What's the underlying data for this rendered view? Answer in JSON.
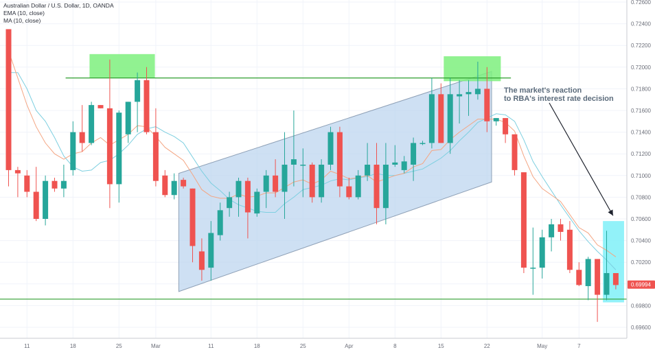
{
  "legend": {
    "title": "Australian Dollar / U.S. Dollar, 1D, OANDA",
    "ema": "EMA (10, close)",
    "ma": "MA (10, close)"
  },
  "annotation": {
    "line1": "The market's reaction",
    "line2": "to RBA's interest rate decision"
  },
  "colors": {
    "up": "#26a69a",
    "down": "#ef5350",
    "ema": "#f4a582",
    "ma": "#7dcfe0",
    "channel_fill": "#b9d3ee",
    "resistance_zone": "#7ef07e",
    "reaction_zone": "#7ff0f8",
    "level_line": "#2e9e2e",
    "price_tag": "#ef5350"
  },
  "chart_data": {
    "type": "candlestick",
    "title": "Australian Dollar / U.S. Dollar, 1D, OANDA",
    "ylim": [
      0.6948,
      0.7262
    ],
    "y_ticks": [
      "0.72600",
      "0.72400",
      "0.72200",
      "0.72000",
      "0.71800",
      "0.71600",
      "0.71400",
      "0.71200",
      "0.71000",
      "0.70800",
      "0.70600",
      "0.70400",
      "0.70200",
      "0.70000",
      "0.69800",
      "0.69600"
    ],
    "y_tick_values": [
      0.726,
      0.724,
      0.722,
      0.72,
      0.718,
      0.716,
      0.714,
      0.712,
      0.71,
      0.708,
      0.706,
      0.704,
      0.702,
      0.7,
      0.698,
      0.696
    ],
    "x_ticks": [
      {
        "label": "11",
        "index": 2
      },
      {
        "label": "18",
        "index": 7
      },
      {
        "label": "25",
        "index": 12
      },
      {
        "label": "Mar",
        "index": 16
      },
      {
        "label": "11",
        "index": 22
      },
      {
        "label": "18",
        "index": 27
      },
      {
        "label": "25",
        "index": 32
      },
      {
        "label": "Apr",
        "index": 37
      },
      {
        "label": "8",
        "index": 42
      },
      {
        "label": "15",
        "index": 47
      },
      {
        "label": "22",
        "index": 52
      },
      {
        "label": "May",
        "index": 58
      },
      {
        "label": "7",
        "index": 62
      }
    ],
    "last_price": "0.69994",
    "last_value": 0.69994,
    "candles": [
      {
        "o": 0.7235,
        "h": 0.7235,
        "l": 0.709,
        "c": 0.7105
      },
      {
        "o": 0.7105,
        "h": 0.7108,
        "l": 0.708,
        "c": 0.7102
      },
      {
        "o": 0.71,
        "h": 0.7105,
        "l": 0.708,
        "c": 0.7085
      },
      {
        "o": 0.7085,
        "h": 0.7108,
        "l": 0.7058,
        "c": 0.706
      },
      {
        "o": 0.706,
        "h": 0.71,
        "l": 0.7054,
        "c": 0.7095
      },
      {
        "o": 0.7095,
        "h": 0.7098,
        "l": 0.7085,
        "c": 0.7088
      },
      {
        "o": 0.7088,
        "h": 0.711,
        "l": 0.708,
        "c": 0.7095
      },
      {
        "o": 0.7105,
        "h": 0.715,
        "l": 0.71,
        "c": 0.714
      },
      {
        "o": 0.714,
        "h": 0.7165,
        "l": 0.7122,
        "c": 0.713
      },
      {
        "o": 0.713,
        "h": 0.7168,
        "l": 0.7128,
        "c": 0.7165
      },
      {
        "o": 0.7165,
        "h": 0.7165,
        "l": 0.7162,
        "c": 0.7162
      },
      {
        "o": 0.7162,
        "h": 0.7207,
        "l": 0.707,
        "c": 0.7092
      },
      {
        "o": 0.7092,
        "h": 0.716,
        "l": 0.7075,
        "c": 0.7158
      },
      {
        "o": 0.7138,
        "h": 0.7168,
        "l": 0.713,
        "c": 0.7168
      },
      {
        "o": 0.7168,
        "h": 0.7195,
        "l": 0.714,
        "c": 0.7188
      },
      {
        "o": 0.7188,
        "h": 0.72,
        "l": 0.7138,
        "c": 0.714
      },
      {
        "o": 0.714,
        "h": 0.7162,
        "l": 0.709,
        "c": 0.7095
      },
      {
        "o": 0.71,
        "h": 0.7105,
        "l": 0.708,
        "c": 0.7082
      },
      {
        "o": 0.7082,
        "h": 0.7102,
        "l": 0.7078,
        "c": 0.7095
      },
      {
        "o": 0.7096,
        "h": 0.7098,
        "l": 0.7088,
        "c": 0.709
      },
      {
        "o": 0.7088,
        "h": 0.7088,
        "l": 0.702,
        "c": 0.7035
      },
      {
        "o": 0.703,
        "h": 0.7042,
        "l": 0.7003,
        "c": 0.7013
      },
      {
        "o": 0.7015,
        "h": 0.7058,
        "l": 0.7003,
        "c": 0.7047
      },
      {
        "o": 0.7045,
        "h": 0.7075,
        "l": 0.704,
        "c": 0.7068
      },
      {
        "o": 0.707,
        "h": 0.7085,
        "l": 0.7062,
        "c": 0.708
      },
      {
        "o": 0.708,
        "h": 0.7098,
        "l": 0.7062,
        "c": 0.7095
      },
      {
        "o": 0.7095,
        "h": 0.7098,
        "l": 0.7042,
        "c": 0.7066
      },
      {
        "o": 0.7065,
        "h": 0.7088,
        "l": 0.7062,
        "c": 0.7085
      },
      {
        "o": 0.7085,
        "h": 0.7105,
        "l": 0.707,
        "c": 0.71
      },
      {
        "o": 0.71,
        "h": 0.7115,
        "l": 0.708,
        "c": 0.7085
      },
      {
        "o": 0.7085,
        "h": 0.714,
        "l": 0.706,
        "c": 0.711
      },
      {
        "o": 0.711,
        "h": 0.716,
        "l": 0.709,
        "c": 0.7115
      },
      {
        "o": 0.711,
        "h": 0.7125,
        "l": 0.708,
        "c": 0.711
      },
      {
        "o": 0.711,
        "h": 0.7112,
        "l": 0.7075,
        "c": 0.708
      },
      {
        "o": 0.708,
        "h": 0.7115,
        "l": 0.7075,
        "c": 0.711
      },
      {
        "o": 0.711,
        "h": 0.7145,
        "l": 0.7105,
        "c": 0.714
      },
      {
        "o": 0.714,
        "h": 0.7145,
        "l": 0.708,
        "c": 0.709
      },
      {
        "o": 0.709,
        "h": 0.7098,
        "l": 0.7078,
        "c": 0.708
      },
      {
        "o": 0.708,
        "h": 0.7105,
        "l": 0.7078,
        "c": 0.71
      },
      {
        "o": 0.71,
        "h": 0.713,
        "l": 0.7095,
        "c": 0.711
      },
      {
        "o": 0.711,
        "h": 0.713,
        "l": 0.7055,
        "c": 0.707
      },
      {
        "o": 0.707,
        "h": 0.713,
        "l": 0.7055,
        "c": 0.711
      },
      {
        "o": 0.711,
        "h": 0.7128,
        "l": 0.7108,
        "c": 0.7112
      },
      {
        "o": 0.7105,
        "h": 0.7118,
        "l": 0.7102,
        "c": 0.7113
      },
      {
        "o": 0.711,
        "h": 0.7135,
        "l": 0.7095,
        "c": 0.713
      },
      {
        "o": 0.713,
        "h": 0.7132,
        "l": 0.7128,
        "c": 0.713
      },
      {
        "o": 0.713,
        "h": 0.719,
        "l": 0.7125,
        "c": 0.7175
      },
      {
        "o": 0.7175,
        "h": 0.7185,
        "l": 0.713,
        "c": 0.713
      },
      {
        "o": 0.713,
        "h": 0.719,
        "l": 0.712,
        "c": 0.7175
      },
      {
        "o": 0.7173,
        "h": 0.7188,
        "l": 0.7148,
        "c": 0.7175
      },
      {
        "o": 0.7175,
        "h": 0.7188,
        "l": 0.7155,
        "c": 0.7177
      },
      {
        "o": 0.7175,
        "h": 0.7205,
        "l": 0.717,
        "c": 0.718
      },
      {
        "o": 0.718,
        "h": 0.72,
        "l": 0.714,
        "c": 0.715
      },
      {
        "o": 0.715,
        "h": 0.7153,
        "l": 0.7146,
        "c": 0.7153
      },
      {
        "o": 0.7153,
        "h": 0.7153,
        "l": 0.713,
        "c": 0.7138
      },
      {
        "o": 0.7138,
        "h": 0.7138,
        "l": 0.71,
        "c": 0.7105
      },
      {
        "o": 0.7103,
        "h": 0.7103,
        "l": 0.701,
        "c": 0.7015
      },
      {
        "o": 0.7015,
        "h": 0.7052,
        "l": 0.699,
        "c": 0.7015
      },
      {
        "o": 0.7015,
        "h": 0.705,
        "l": 0.7005,
        "c": 0.7043
      },
      {
        "o": 0.7043,
        "h": 0.706,
        "l": 0.703,
        "c": 0.7055
      },
      {
        "o": 0.7055,
        "h": 0.706,
        "l": 0.704,
        "c": 0.7048
      },
      {
        "o": 0.705,
        "h": 0.7058,
        "l": 0.701,
        "c": 0.7013
      },
      {
        "o": 0.7013,
        "h": 0.702,
        "l": 0.6998,
        "c": 0.6999
      },
      {
        "o": 0.6998,
        "h": 0.7025,
        "l": 0.6985,
        "c": 0.7023
      },
      {
        "o": 0.7023,
        "h": 0.7023,
        "l": 0.6965,
        "c": 0.699
      },
      {
        "o": 0.699,
        "h": 0.7049,
        "l": 0.6985,
        "c": 0.701
      },
      {
        "o": 0.701,
        "h": 0.701,
        "l": 0.6995,
        "c": 0.6999
      }
    ],
    "ema": [
      0.7215,
      0.719,
      0.7165,
      0.7145,
      0.713,
      0.712,
      0.7115,
      0.712,
      0.7122,
      0.713,
      0.7135,
      0.7128,
      0.7133,
      0.7138,
      0.7146,
      0.7145,
      0.7136,
      0.7126,
      0.712,
      0.7114,
      0.7101,
      0.7087,
      0.7081,
      0.7079,
      0.7079,
      0.7083,
      0.708,
      0.7081,
      0.7084,
      0.7084,
      0.7089,
      0.7094,
      0.7096,
      0.7092,
      0.7096,
      0.7104,
      0.7101,
      0.7097,
      0.7098,
      0.71,
      0.7094,
      0.7097,
      0.71,
      0.7102,
      0.7108,
      0.7111,
      0.7123,
      0.7124,
      0.7133,
      0.714,
      0.7146,
      0.7152,
      0.7152,
      0.7152,
      0.7149,
      0.7141,
      0.7118,
      0.7099,
      0.7088,
      0.7082,
      0.7076,
      0.7064,
      0.7052,
      0.7047,
      0.7036,
      0.7031,
      0.7025
    ],
    "ma": [
      0.7195,
      0.7195,
      0.718,
      0.716,
      0.715,
      0.7135,
      0.7118,
      0.7108,
      0.7104,
      0.7105,
      0.7112,
      0.7114,
      0.712,
      0.7128,
      0.7138,
      0.7143,
      0.7145,
      0.714,
      0.7136,
      0.713,
      0.7117,
      0.7104,
      0.7093,
      0.7086,
      0.7078,
      0.7073,
      0.707,
      0.7067,
      0.7066,
      0.7066,
      0.7074,
      0.708,
      0.7087,
      0.7089,
      0.7091,
      0.7095,
      0.7097,
      0.7096,
      0.7098,
      0.7099,
      0.7102,
      0.71,
      0.71,
      0.7102,
      0.7104,
      0.7106,
      0.7111,
      0.7116,
      0.7123,
      0.7132,
      0.714,
      0.7149,
      0.7153,
      0.7157,
      0.7156,
      0.715,
      0.7133,
      0.7113,
      0.7099,
      0.7086,
      0.7073,
      0.7061,
      0.7049,
      0.7039,
      0.703,
      0.7022,
      0.7013
    ]
  }
}
